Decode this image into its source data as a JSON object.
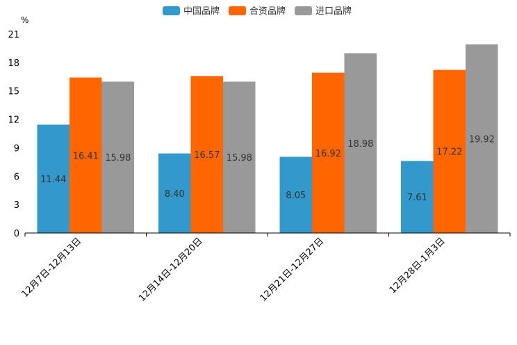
{
  "chart_data": {
    "type": "bar",
    "title": "",
    "xlabel": "",
    "ylabel": "",
    "y_unit": "%",
    "ylim": [
      0,
      21
    ],
    "yticks": [
      0,
      3,
      6,
      9,
      12,
      15,
      18,
      21
    ],
    "grid": false,
    "legend_position": "top-center",
    "categories": [
      "12月7日-12月13日",
      "12月14日-12月20日",
      "12月21日-12月27日",
      "12月28日-1月3日"
    ],
    "series": [
      {
        "name": "中国品牌",
        "color": "#3399cc",
        "values": [
          11.44,
          8.4,
          8.05,
          7.61
        ],
        "labels": [
          "11.44",
          "8.40",
          "8.05",
          "7.61"
        ]
      },
      {
        "name": "合资品牌",
        "color": "#ff6600",
        "values": [
          16.41,
          16.57,
          16.92,
          17.22
        ],
        "labels": [
          "16.41",
          "16.57",
          "16.92",
          "17.22"
        ]
      },
      {
        "name": "进口品牌",
        "color": "#999999",
        "values": [
          15.98,
          15.98,
          18.98,
          19.92
        ],
        "labels": [
          "15.98",
          "15.98",
          "18.98",
          "19.92"
        ]
      }
    ]
  }
}
